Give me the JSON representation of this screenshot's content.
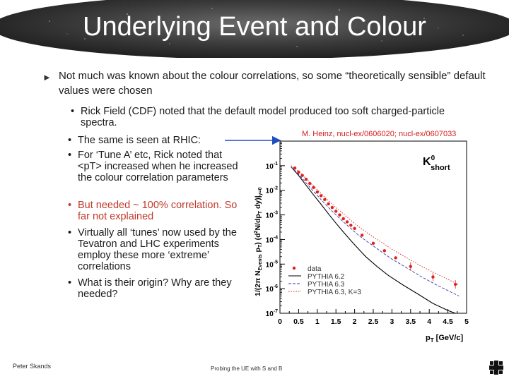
{
  "slide": {
    "title": "Underlying Event and Colour",
    "main_bullet": "Not much was known about the colour correlations, so some “theoretically sensible” default values were chosen",
    "sub_bullets": [
      {
        "text": "Rick Field (CDF) noted that the default model produced too soft charged-particle spectra.",
        "highlight": false
      },
      {
        "text": "The same is seen at RHIC:",
        "highlight": false
      },
      {
        "text": "For ‘Tune A’ etc, Rick noted that <pT> increased when he increased the colour correlation parameters",
        "highlight": false
      },
      {
        "text": "But needed ~ 100% correlation. So far not explained",
        "highlight": true
      },
      {
        "text": "Virtually all ‘tunes’ now used by the Tevatron and LHC experiments employ these more ‘extreme’ correlations",
        "highlight": false
      },
      {
        "text": "What is their origin? Why are they needed?",
        "highlight": false
      }
    ],
    "citation": "M. Heinz, nucl-ex/0606020; nucl-ex/0607033",
    "footer_left": "Peter Skands",
    "footer_center": "Probing the UE with S and B",
    "colors": {
      "highlight": "#c0392b",
      "citation": "#d61a1a",
      "data_points": "#e0201a"
    }
  },
  "chart_data": {
    "type": "scatter",
    "particle_label": "K0 short",
    "ylabel": "1/(2π N_Events p_T) (d²N/dp_T dy)|y=0",
    "xlabel": "p_T [GeV/c]",
    "xlim": [
      0,
      5
    ],
    "ylim": [
      1e-07,
      1
    ],
    "y_scale": "log",
    "x_ticks": [
      "0",
      "0.5",
      "1",
      "1.5",
      "2",
      "2.5",
      "3",
      "3.5",
      "4",
      "4.5",
      "5"
    ],
    "y_ticks": [
      "10^-1",
      "10^-2",
      "10^-3",
      "10^-4",
      "10^-5",
      "10^-6",
      "10^-7"
    ],
    "legend": [
      "data",
      "PYTHIA 6.2",
      "PYTHIA 6.3",
      "PYTHIA 6.3, K=3"
    ],
    "series": [
      {
        "name": "data",
        "style": "points",
        "x": [
          0.4,
          0.5,
          0.6,
          0.7,
          0.8,
          0.9,
          1.0,
          1.1,
          1.2,
          1.3,
          1.4,
          1.5,
          1.6,
          1.7,
          1.8,
          1.9,
          2.0,
          2.2,
          2.5,
          2.8,
          3.1,
          3.5,
          4.1,
          4.7
        ],
        "y": [
          0.08,
          0.055,
          0.04,
          0.028,
          0.019,
          0.013,
          0.0085,
          0.006,
          0.0042,
          0.0028,
          0.002,
          0.0014,
          0.001,
          0.0007,
          0.00052,
          0.00038,
          0.00028,
          0.00015,
          7e-05,
          3.5e-05,
          1.8e-05,
          8e-06,
          3e-06,
          1.5e-06
        ]
      },
      {
        "name": "PYTHIA 6.2",
        "style": "solid",
        "x": [
          0.3,
          0.5,
          0.7,
          0.9,
          1.1,
          1.3,
          1.5,
          1.7,
          1.9,
          2.1,
          2.3,
          2.6,
          2.9,
          3.3,
          3.7,
          4.1,
          4.5,
          4.7
        ],
        "y": [
          0.09,
          0.04,
          0.016,
          0.0065,
          0.0027,
          0.0011,
          0.00046,
          0.0002,
          9e-05,
          4.2e-05,
          2e-05,
          8e-06,
          3.5e-06,
          1.4e-06,
          6e-07,
          2.5e-07,
          1.3e-07,
          1e-07
        ]
      },
      {
        "name": "PYTHIA 6.3",
        "style": "dashed",
        "x": [
          0.3,
          0.5,
          0.7,
          0.9,
          1.1,
          1.3,
          1.5,
          1.7,
          1.9,
          2.1,
          2.4,
          2.7,
          3.0,
          3.4,
          3.8,
          4.2,
          4.6,
          4.8
        ],
        "y": [
          0.09,
          0.045,
          0.02,
          0.009,
          0.0042,
          0.002,
          0.001,
          0.00052,
          0.00028,
          0.00015,
          7e-05,
          3.3e-05,
          1.6e-05,
          7e-06,
          3e-06,
          1.4e-06,
          7e-07,
          5e-07
        ]
      },
      {
        "name": "PYTHIA 6.3, K=3",
        "style": "dotted",
        "x": [
          0.3,
          0.5,
          0.7,
          0.9,
          1.1,
          1.3,
          1.5,
          1.7,
          1.9,
          2.1,
          2.4,
          2.7,
          3.0,
          3.4,
          3.8,
          4.2,
          4.6,
          4.8
        ],
        "y": [
          0.1,
          0.06,
          0.03,
          0.015,
          0.0075,
          0.0038,
          0.002,
          0.0011,
          0.0006,
          0.00034,
          0.00016,
          8e-05,
          4e-05,
          1.8e-05,
          8e-06,
          4e-06,
          2e-06,
          1.4e-06
        ]
      }
    ]
  }
}
